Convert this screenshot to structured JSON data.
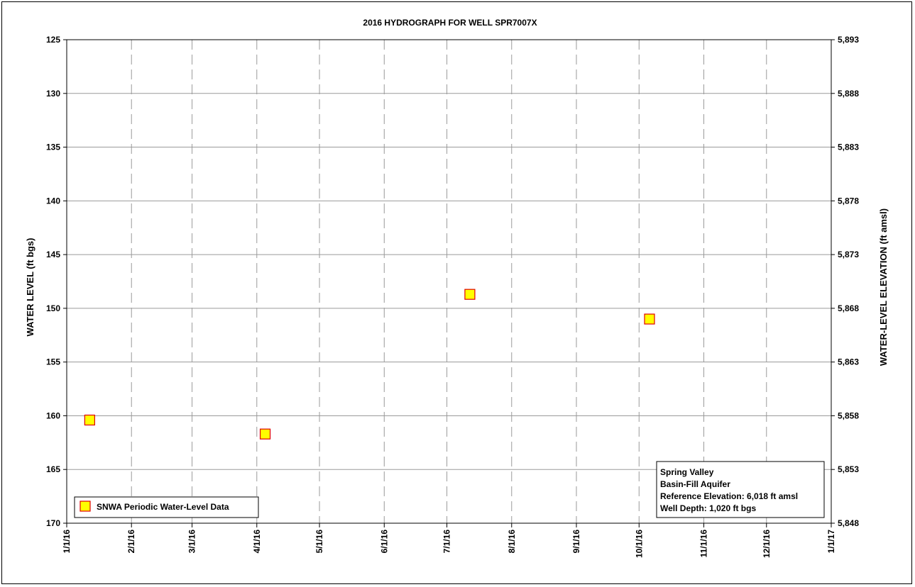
{
  "chart_data": {
    "type": "scatter",
    "title": "2016 HYDROGRAPH FOR WELL SPR7007X",
    "ylabel": "WATER LEVEL (ft bgs)",
    "y2label": "WATER-LEVEL ELEVATION (ft amsl)",
    "ylim": [
      125,
      170
    ],
    "y_inverted": true,
    "y2lim": [
      5893,
      5848
    ],
    "yticks": [
      "125",
      "130",
      "135",
      "140",
      "145",
      "150",
      "155",
      "160",
      "165",
      "170"
    ],
    "y2ticks": [
      "5,893",
      "5,888",
      "5,883",
      "5,878",
      "5,873",
      "5,868",
      "5,863",
      "5,858",
      "5,853",
      "5,848"
    ],
    "xlim": [
      "2016-01-01",
      "2017-01-01"
    ],
    "xticks": [
      "1/1/16",
      "2/1/16",
      "3/1/16",
      "4/1/16",
      "5/1/16",
      "6/1/16",
      "7/1/16",
      "8/1/16",
      "9/1/16",
      "10/1/16",
      "11/1/16",
      "12/1/16",
      "1/1/17"
    ],
    "grid": true,
    "series": [
      {
        "name": "SNWA Periodic Water-Level Data",
        "marker": "square",
        "fill": "#ffff00",
        "stroke": "#e00000",
        "points": [
          {
            "x": "2016-01-12",
            "y": 160.4
          },
          {
            "x": "2016-04-05",
            "y": 161.7
          },
          {
            "x": "2016-07-12",
            "y": 148.7
          },
          {
            "x": "2016-10-06",
            "y": 151.0
          }
        ]
      }
    ],
    "legend_position": "bottom-left",
    "info_box": {
      "position": "bottom-right",
      "lines": [
        "Spring Valley",
        "Basin-Fill Aquifer",
        "Reference Elevation: 6,018 ft amsl",
        "Well Depth: 1,020 ft bgs"
      ]
    }
  }
}
